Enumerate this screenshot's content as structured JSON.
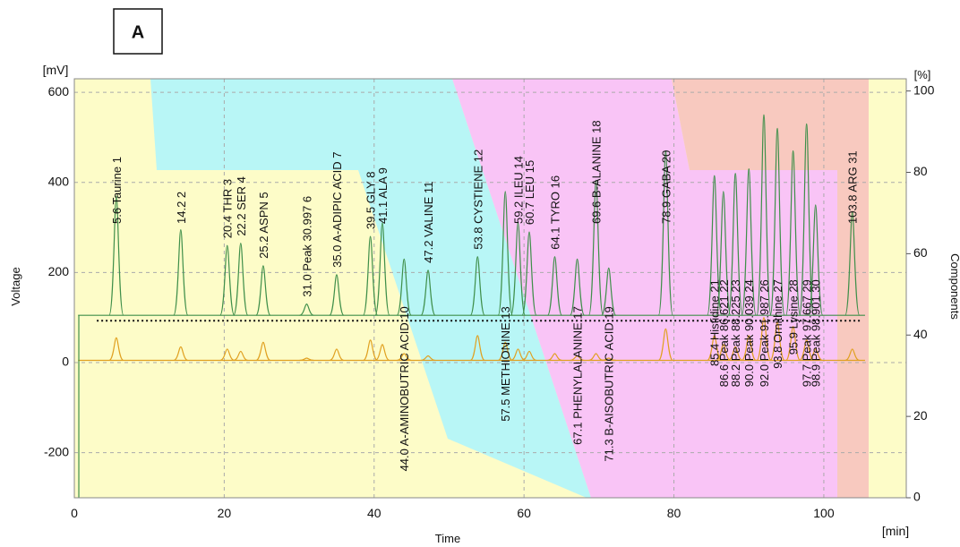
{
  "chart_data": {
    "type": "line",
    "panel_label": "A",
    "y_unit": "[mV]",
    "y_label": "Voltage",
    "x_label": "Time",
    "x_unit": "[min]",
    "y2_unit": "[%]",
    "y2_label": "Components",
    "xlim": [
      0,
      111
    ],
    "xticks": [
      0,
      20,
      40,
      60,
      80,
      100
    ],
    "ylim": [
      -300,
      630
    ],
    "yticks": [
      -200,
      0,
      200,
      400,
      600
    ],
    "y2lim": [
      0,
      103
    ],
    "y2ticks": [
      0,
      20,
      40,
      60,
      80,
      100
    ],
    "grid": true,
    "peak_times": [
      5.6,
      14.2,
      20.4,
      22.2,
      25.2,
      31.0,
      35.0,
      39.5,
      41.1,
      44.0,
      47.2,
      53.8,
      57.5,
      59.2,
      60.7,
      64.1,
      67.1,
      69.6,
      71.3,
      78.9,
      85.4,
      86.6,
      88.2,
      90.0,
      92.0,
      93.8,
      95.9,
      97.7,
      98.9,
      103.8
    ],
    "peak_labels": [
      "5.6 Taurine 1",
      "14.2 2",
      "20.4 THR 3",
      "22.2 SER 4",
      "25.2 ASPN 5",
      "31.0 Peak 30.997 6",
      "35.0 A-ADIPIC ACID 7",
      "39.5 GLY 8",
      "41.1 ALA 9",
      "44.0 A-AMINOBUTRIC ACID 10",
      "47.2 VALINE 11",
      "53.8 CYSTIENE 12",
      "57.5 METHIONINE 13",
      "59.2 ILEU 14",
      "60.7 LEU 15",
      "64.1 TYRO 16",
      "67.1 PHENYLALANINE 17",
      "69.6 B-ALANINE 18",
      "71.3 B-AISOBUTRIC ACID 19",
      "78.9 GABA 20",
      "85.4 Histidine 21",
      "86.6 Peak 86.621 22",
      "88.2 Peak 88.225 23",
      "90.0 Peak 90.039 24",
      "92.0 Peak 91.987 26",
      "93.8 Ornithine 27",
      "95.9 Lysine 28",
      "97.7 Peak 97.667 29",
      "98.9 Peak 98.901 30",
      "103.8 ARG 31"
    ],
    "traces": [
      {
        "color": "#3f8f4a",
        "baseline": 105,
        "heights": [
          370,
          295,
          260,
          265,
          215,
          130,
          195,
          280,
          310,
          230,
          205,
          235,
          380,
          310,
          290,
          235,
          230,
          405,
          210,
          470,
          415,
          380,
          420,
          430,
          550,
          520,
          470,
          530,
          350,
          335
        ]
      },
      {
        "color": "#e0a020",
        "baseline": 5,
        "heights": [
          55,
          35,
          30,
          25,
          45,
          10,
          30,
          50,
          40,
          20,
          15,
          60,
          45,
          30,
          25,
          20,
          15,
          20,
          10,
          75,
          60,
          40,
          35,
          60,
          100,
          90,
          80,
          50,
          30,
          30
        ]
      }
    ]
  }
}
